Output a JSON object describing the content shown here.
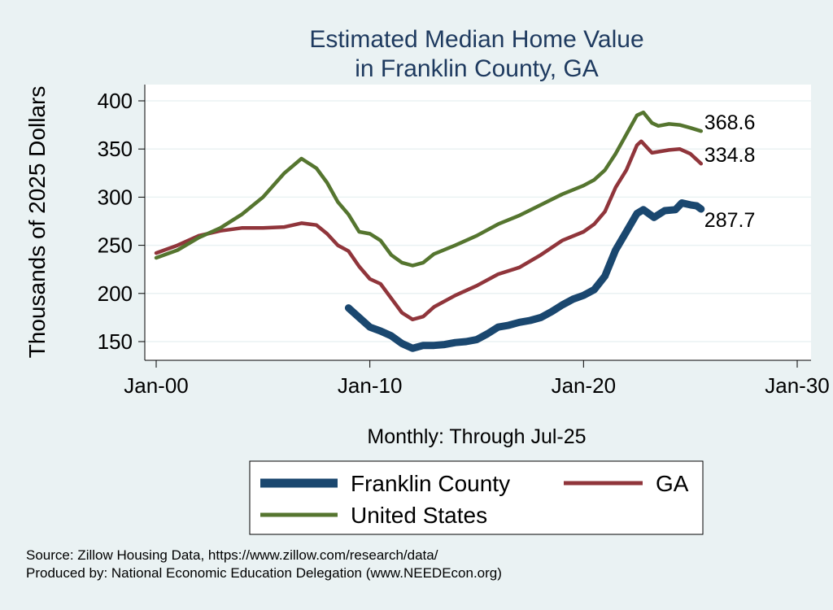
{
  "chart_data": {
    "type": "line",
    "title": [
      "Estimated Median Home Value",
      "in Franklin County, GA"
    ],
    "xlabel": "Monthly: Through Jul-25",
    "ylabel": "Thousands of 2025 Dollars",
    "xlim": [
      2000,
      2030
    ],
    "ylim": [
      150,
      400
    ],
    "x_ticks": [
      {
        "value": 2000,
        "label": "Jan-00"
      },
      {
        "value": 2010,
        "label": "Jan-10"
      },
      {
        "value": 2020,
        "label": "Jan-20"
      },
      {
        "value": 2030,
        "label": "Jan-30"
      }
    ],
    "y_ticks": [
      150,
      200,
      250,
      300,
      350,
      400
    ],
    "grid": true,
    "legend_position": "bottom",
    "series": [
      {
        "name": "Franklin County",
        "color": "#1a476f",
        "end_label": "287.7",
        "points": [
          [
            2009,
            185
          ],
          [
            2009.5,
            175
          ],
          [
            2010,
            165
          ],
          [
            2010.5,
            161
          ],
          [
            2011,
            156
          ],
          [
            2011.5,
            148
          ],
          [
            2012,
            143
          ],
          [
            2012.5,
            146
          ],
          [
            2013,
            146
          ],
          [
            2013.5,
            147
          ],
          [
            2014,
            149
          ],
          [
            2014.5,
            150
          ],
          [
            2015,
            152
          ],
          [
            2015.5,
            158
          ],
          [
            2016,
            165
          ],
          [
            2016.5,
            167
          ],
          [
            2017,
            170
          ],
          [
            2017.5,
            172
          ],
          [
            2018,
            175
          ],
          [
            2018.5,
            181
          ],
          [
            2019,
            188
          ],
          [
            2019.5,
            194
          ],
          [
            2020,
            198
          ],
          [
            2020.5,
            204
          ],
          [
            2021,
            218
          ],
          [
            2021.5,
            245
          ],
          [
            2022,
            264
          ],
          [
            2022.5,
            283
          ],
          [
            2022.8,
            287
          ],
          [
            2023.3,
            279
          ],
          [
            2023.8,
            286
          ],
          [
            2024.3,
            287
          ],
          [
            2024.6,
            294
          ],
          [
            2025,
            292
          ],
          [
            2025.3,
            291
          ],
          [
            2025.5,
            287.7
          ]
        ]
      },
      {
        "name": "GA",
        "color": "#90353b",
        "end_label": "334.8",
        "points": [
          [
            2000,
            242
          ],
          [
            2001,
            250
          ],
          [
            2002,
            260
          ],
          [
            2003,
            265
          ],
          [
            2004,
            268
          ],
          [
            2005,
            268
          ],
          [
            2006,
            269
          ],
          [
            2006.8,
            273
          ],
          [
            2007.5,
            271
          ],
          [
            2008,
            262
          ],
          [
            2008.5,
            250
          ],
          [
            2009,
            244
          ],
          [
            2009.5,
            228
          ],
          [
            2010,
            215
          ],
          [
            2010.5,
            210
          ],
          [
            2011,
            195
          ],
          [
            2011.5,
            180
          ],
          [
            2012,
            173
          ],
          [
            2012.5,
            176
          ],
          [
            2013,
            186
          ],
          [
            2014,
            198
          ],
          [
            2015,
            208
          ],
          [
            2016,
            220
          ],
          [
            2017,
            227
          ],
          [
            2018,
            240
          ],
          [
            2019,
            255
          ],
          [
            2020,
            264
          ],
          [
            2020.5,
            272
          ],
          [
            2021,
            285
          ],
          [
            2021.5,
            310
          ],
          [
            2022,
            328
          ],
          [
            2022.5,
            354
          ],
          [
            2022.7,
            358
          ],
          [
            2023.2,
            346
          ],
          [
            2024,
            349
          ],
          [
            2024.5,
            350
          ],
          [
            2025,
            345
          ],
          [
            2025.5,
            334.8
          ]
        ]
      },
      {
        "name": "United States",
        "color": "#55752f",
        "end_label": "368.6",
        "points": [
          [
            2000,
            237
          ],
          [
            2001,
            245
          ],
          [
            2002,
            258
          ],
          [
            2003,
            268
          ],
          [
            2004,
            282
          ],
          [
            2005,
            300
          ],
          [
            2006,
            325
          ],
          [
            2006.8,
            340
          ],
          [
            2007.5,
            330
          ],
          [
            2008,
            315
          ],
          [
            2008.5,
            295
          ],
          [
            2009,
            282
          ],
          [
            2009.5,
            264
          ],
          [
            2010,
            262
          ],
          [
            2010.5,
            255
          ],
          [
            2011,
            240
          ],
          [
            2011.5,
            232
          ],
          [
            2012,
            229
          ],
          [
            2012.5,
            232
          ],
          [
            2013,
            241
          ],
          [
            2014,
            250
          ],
          [
            2015,
            260
          ],
          [
            2016,
            272
          ],
          [
            2017,
            281
          ],
          [
            2018,
            292
          ],
          [
            2019,
            303
          ],
          [
            2020,
            312
          ],
          [
            2020.5,
            318
          ],
          [
            2021,
            328
          ],
          [
            2021.5,
            345
          ],
          [
            2022,
            365
          ],
          [
            2022.5,
            385
          ],
          [
            2022.8,
            388
          ],
          [
            2023.2,
            377
          ],
          [
            2023.5,
            374
          ],
          [
            2024,
            376
          ],
          [
            2024.5,
            375
          ],
          [
            2025,
            372
          ],
          [
            2025.5,
            368.6
          ]
        ]
      }
    ]
  },
  "legend": [
    {
      "label": "Franklin County",
      "color": "#1a476f"
    },
    {
      "label": "GA",
      "color": "#90353b"
    },
    {
      "label": "United States",
      "color": "#55752f"
    }
  ],
  "footer": {
    "source": "Source: Zillow Housing Data, https://www.zillow.com/research/data/",
    "produced": "Produced by: National Economic Education Delegation (www.NEEDEcon.org)"
  },
  "colors": {
    "background": "#eaf2f3",
    "plot": "#ffffff",
    "title": "#1e3a5f"
  }
}
